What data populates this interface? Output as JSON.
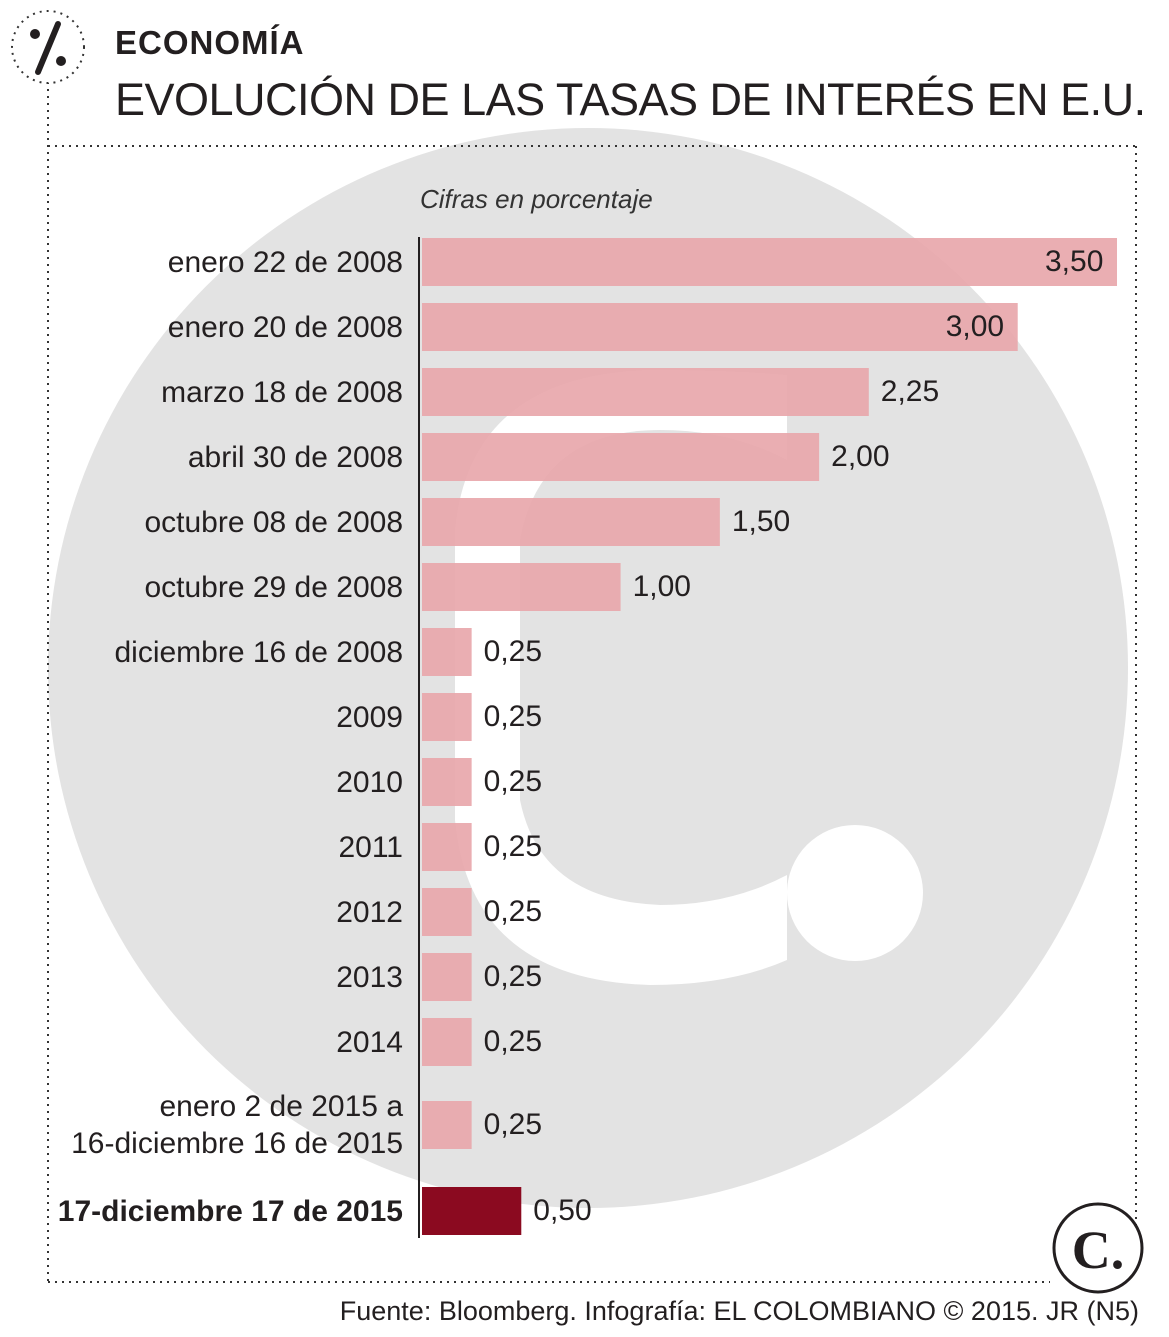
{
  "header": {
    "section": "ECONOMÍA",
    "title": "EVOLUCIÓN DE LAS TASAS DE INTERÉS EN E.U.",
    "icon": "percent-icon"
  },
  "footer": {
    "source": "Fuente: Bloomberg. Infografía: EL COLOMBIANO © 2015. JR (N5)",
    "logo_letter": "C."
  },
  "colors": {
    "bar": "#e8a5aa",
    "bar_highlight": "#8b0a20",
    "watermark": "#e3e3e3",
    "text": "#231f20"
  },
  "chart_data": {
    "type": "bar",
    "orientation": "horizontal",
    "subtitle": "Cifras en porcentaje",
    "title": "EVOLUCIÓN DE LAS TASAS DE INTERÉS EN E.U.",
    "xlim": [
      0,
      3.5
    ],
    "categories": [
      "enero 22 de 2008",
      "enero 20 de 2008",
      "marzo 18 de 2008",
      "abril 30 de 2008",
      "octubre 08 de 2008",
      "octubre 29 de 2008",
      "diciembre 16 de 2008",
      "2009",
      "2010",
      "2011",
      "2012",
      "2013",
      "2014",
      "enero 2 de 2015 a 16-diciembre 16 de 2015",
      "17-diciembre 17 de 2015"
    ],
    "category_lines": [
      [
        "enero 22 de 2008"
      ],
      [
        "enero 20 de 2008"
      ],
      [
        "marzo 18 de 2008"
      ],
      [
        "abril 30 de 2008"
      ],
      [
        "octubre 08 de 2008"
      ],
      [
        "octubre 29 de 2008"
      ],
      [
        "diciembre 16 de 2008"
      ],
      [
        "2009"
      ],
      [
        "2010"
      ],
      [
        "2011"
      ],
      [
        "2012"
      ],
      [
        "2013"
      ],
      [
        "2014"
      ],
      [
        "enero 2 de 2015 a",
        "16-diciembre 16 de 2015"
      ],
      [
        "17-diciembre 17 de 2015"
      ]
    ],
    "values": [
      3.5,
      3.0,
      2.25,
      2.0,
      1.5,
      1.0,
      0.25,
      0.25,
      0.25,
      0.25,
      0.25,
      0.25,
      0.25,
      0.25,
      0.5
    ],
    "value_labels": [
      "3,50",
      "3,00",
      "2,25",
      "2,00",
      "1,50",
      "1,00",
      "0,25",
      "0,25",
      "0,25",
      "0,25",
      "0,25",
      "0,25",
      "0,25",
      "0,25",
      "0,50"
    ],
    "highlighted": [
      false,
      false,
      false,
      false,
      false,
      false,
      false,
      false,
      false,
      false,
      false,
      false,
      false,
      false,
      true
    ]
  }
}
